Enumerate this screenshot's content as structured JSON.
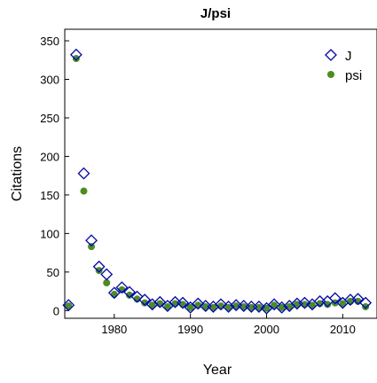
{
  "chart_data": {
    "type": "scatter",
    "title": "J/psi",
    "xlabel": "Year",
    "ylabel": "Citations",
    "xlim": [
      1973.5,
      2014.5
    ],
    "ylim": [
      -10,
      365
    ],
    "xticks": [
      1980,
      1990,
      2000,
      2010
    ],
    "yticks": [
      0,
      50,
      100,
      150,
      200,
      250,
      300,
      350
    ],
    "grid": false,
    "legend_position": "top-right",
    "series": [
      {
        "name": "J",
        "marker": "diamond-open",
        "color": "#0000cc",
        "points": [
          [
            1974,
            7
          ],
          [
            1975,
            332
          ],
          [
            1976,
            178
          ],
          [
            1977,
            91
          ],
          [
            1978,
            57
          ],
          [
            1979,
            47
          ],
          [
            1980,
            23
          ],
          [
            1981,
            30
          ],
          [
            1982,
            24
          ],
          [
            1983,
            18
          ],
          [
            1984,
            14
          ],
          [
            1985,
            8
          ],
          [
            1986,
            11
          ],
          [
            1987,
            6
          ],
          [
            1988,
            11
          ],
          [
            1989,
            10
          ],
          [
            1990,
            4
          ],
          [
            1991,
            9
          ],
          [
            1992,
            6
          ],
          [
            1993,
            5
          ],
          [
            1994,
            8
          ],
          [
            1995,
            5
          ],
          [
            1996,
            7
          ],
          [
            1997,
            6
          ],
          [
            1998,
            5
          ],
          [
            1999,
            5
          ],
          [
            2000,
            3
          ],
          [
            2001,
            8
          ],
          [
            2002,
            4
          ],
          [
            2003,
            6
          ],
          [
            2004,
            9
          ],
          [
            2005,
            10
          ],
          [
            2006,
            8
          ],
          [
            2007,
            12
          ],
          [
            2008,
            12
          ],
          [
            2009,
            16
          ],
          [
            2010,
            10
          ],
          [
            2011,
            14
          ],
          [
            2012,
            15
          ],
          [
            2013,
            10
          ]
        ]
      },
      {
        "name": "psi",
        "marker": "circle-filled",
        "color": "#4a8f1e",
        "points": [
          [
            1974,
            6
          ],
          [
            1975,
            327
          ],
          [
            1976,
            155
          ],
          [
            1977,
            83
          ],
          [
            1978,
            52
          ],
          [
            1979,
            36
          ],
          [
            1980,
            21
          ],
          [
            1981,
            27
          ],
          [
            1982,
            20
          ],
          [
            1983,
            15
          ],
          [
            1984,
            10
          ],
          [
            1985,
            7
          ],
          [
            1986,
            9
          ],
          [
            1987,
            5
          ],
          [
            1988,
            9
          ],
          [
            1989,
            8
          ],
          [
            1990,
            4
          ],
          [
            1991,
            7
          ],
          [
            1992,
            5
          ],
          [
            1993,
            4
          ],
          [
            1994,
            6
          ],
          [
            1995,
            4
          ],
          [
            1996,
            6
          ],
          [
            1997,
            5
          ],
          [
            1998,
            4
          ],
          [
            1999,
            4
          ],
          [
            2000,
            3
          ],
          [
            2001,
            7
          ],
          [
            2002,
            4
          ],
          [
            2003,
            5
          ],
          [
            2004,
            8
          ],
          [
            2005,
            8
          ],
          [
            2006,
            7
          ],
          [
            2007,
            9
          ],
          [
            2008,
            8
          ],
          [
            2009,
            10
          ],
          [
            2010,
            9
          ],
          [
            2011,
            12
          ],
          [
            2012,
            12
          ],
          [
            2013,
            5
          ]
        ]
      }
    ]
  }
}
